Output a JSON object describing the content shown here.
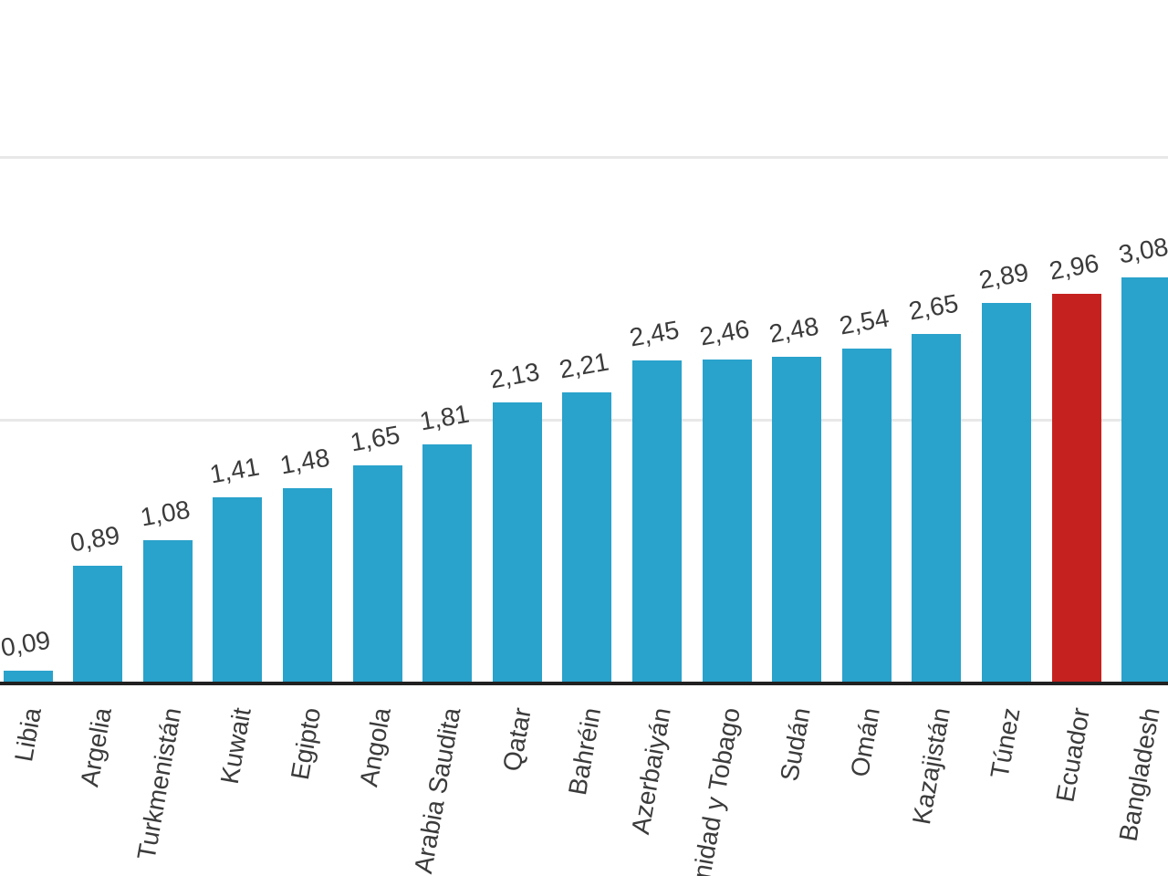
{
  "chart_data": {
    "type": "bar",
    "title": "",
    "xlabel": "",
    "ylabel": "",
    "legend": "none",
    "grid": true,
    "ylim": [
      0,
      5.2
    ],
    "gridlines_at": [
      2,
      4
    ],
    "categories": [
      "Libia",
      "Argelia",
      "Turkmenistán",
      "Kuwait",
      "Egipto",
      "Angola",
      "Arabia Saudita",
      "Qatar",
      "Bahréin",
      "Azerbaiyán",
      "Trinidad y Tobago",
      "Sudán",
      "Omán",
      "Kazajistán",
      "Túnez",
      "Ecuador",
      "Bangladesh"
    ],
    "values": [
      0.09,
      0.89,
      1.08,
      1.41,
      1.48,
      1.65,
      1.81,
      2.13,
      2.21,
      2.45,
      2.46,
      2.48,
      2.54,
      2.65,
      2.89,
      2.96,
      3.08
    ],
    "value_labels": [
      "0,09",
      "0,89",
      "1,08",
      "1,41",
      "1,48",
      "1,65",
      "1,81",
      "2,13",
      "2,21",
      "2,45",
      "2,46",
      "2,48",
      "2,54",
      "2,65",
      "2,89",
      "2,96",
      "3,08"
    ],
    "decimal_separator": ",",
    "highlight_category": "Ecuador",
    "colors": {
      "bar": "#29a2cc",
      "highlight": "#c5221f",
      "axis": "#212121",
      "gridline": "#e8e8e8",
      "label": "#3b3b3b"
    }
  }
}
